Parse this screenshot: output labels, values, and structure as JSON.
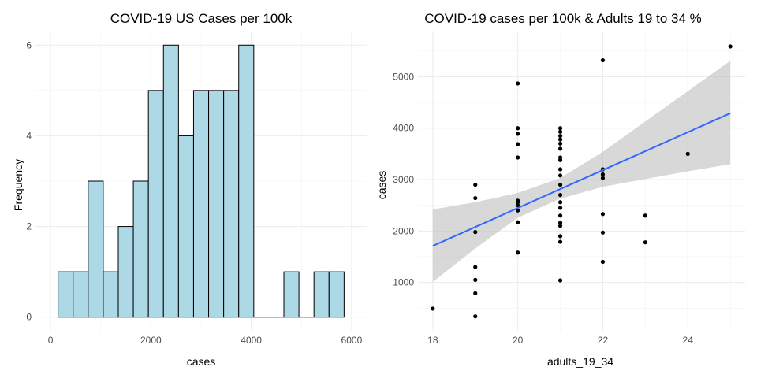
{
  "colors": {
    "bar_fill": "#ADD8E6",
    "bar_stroke": "#000000",
    "point": "#000000",
    "smooth_line": "#3366FF",
    "ribbon": "#BEBEBE"
  },
  "chart_data": [
    {
      "type": "bar",
      "subtype": "histogram",
      "title": "COVID-19 US Cases per 100k",
      "xlabel": "cases",
      "ylabel": "Frequency",
      "xlim": [
        0,
        6000
      ],
      "ylim": [
        0,
        6
      ],
      "xticks": [
        0,
        2000,
        4000,
        6000
      ],
      "yticks": [
        0,
        2,
        4,
        6
      ],
      "bin_width": 300,
      "bins": [
        {
          "x0": 150,
          "x1": 450,
          "count": 1
        },
        {
          "x0": 450,
          "x1": 750,
          "count": 1
        },
        {
          "x0": 750,
          "x1": 1050,
          "count": 3
        },
        {
          "x0": 1050,
          "x1": 1350,
          "count": 1
        },
        {
          "x0": 1350,
          "x1": 1650,
          "count": 2
        },
        {
          "x0": 1650,
          "x1": 1950,
          "count": 3
        },
        {
          "x0": 1950,
          "x1": 2250,
          "count": 5
        },
        {
          "x0": 2250,
          "x1": 2550,
          "count": 6
        },
        {
          "x0": 2550,
          "x1": 2850,
          "count": 4
        },
        {
          "x0": 2850,
          "x1": 3150,
          "count": 5
        },
        {
          "x0": 3150,
          "x1": 3450,
          "count": 5
        },
        {
          "x0": 3450,
          "x1": 3750,
          "count": 5
        },
        {
          "x0": 3750,
          "x1": 4050,
          "count": 6
        },
        {
          "x0": 4050,
          "x1": 4350,
          "count": 0
        },
        {
          "x0": 4350,
          "x1": 4650,
          "count": 0
        },
        {
          "x0": 4650,
          "x1": 4950,
          "count": 1
        },
        {
          "x0": 4950,
          "x1": 5250,
          "count": 0
        },
        {
          "x0": 5250,
          "x1": 5550,
          "count": 1
        },
        {
          "x0": 5550,
          "x1": 5850,
          "count": 1
        }
      ],
      "grid": true
    },
    {
      "type": "scatter",
      "title": "COVID-19 cases per 100k & Adults 19 to 34 %",
      "xlabel": "adults_19_34",
      "ylabel": "cases",
      "xlim": [
        17.65,
        25.35
      ],
      "ylim": [
        60,
        5880
      ],
      "xticks": [
        18,
        20,
        22,
        24
      ],
      "yticks": [
        1000,
        2000,
        3000,
        4000,
        5000
      ],
      "grid": true,
      "points": [
        [
          18,
          490
        ],
        [
          19,
          340
        ],
        [
          19,
          790
        ],
        [
          19,
          1050
        ],
        [
          19,
          1300
        ],
        [
          19,
          1980
        ],
        [
          19,
          2640
        ],
        [
          19,
          2900
        ],
        [
          20,
          1580
        ],
        [
          20,
          2170
        ],
        [
          20,
          2400
        ],
        [
          20,
          2500
        ],
        [
          20,
          2560
        ],
        [
          20,
          2590
        ],
        [
          20,
          3430
        ],
        [
          20,
          3690
        ],
        [
          20,
          3890
        ],
        [
          20,
          4000
        ],
        [
          20,
          4870
        ],
        [
          21,
          1040
        ],
        [
          21,
          1790
        ],
        [
          21,
          1900
        ],
        [
          21,
          2100
        ],
        [
          21,
          2160
        ],
        [
          21,
          2300
        ],
        [
          21,
          2450
        ],
        [
          21,
          2560
        ],
        [
          21,
          2700
        ],
        [
          21,
          2900
        ],
        [
          21,
          3080
        ],
        [
          21,
          3200
        ],
        [
          21,
          3380
        ],
        [
          21,
          3430
        ],
        [
          21,
          3600
        ],
        [
          21,
          3700
        ],
        [
          21,
          3780
        ],
        [
          21,
          3850
        ],
        [
          21,
          3930
        ],
        [
          21,
          4000
        ],
        [
          22,
          1400
        ],
        [
          22,
          1970
        ],
        [
          22,
          2330
        ],
        [
          22,
          3030
        ],
        [
          22,
          3100
        ],
        [
          22,
          3200
        ],
        [
          22,
          5320
        ],
        [
          23,
          1780
        ],
        [
          23,
          2300
        ],
        [
          24,
          3500
        ],
        [
          25,
          5590
        ]
      ],
      "trend": {
        "method": "linear",
        "x": [
          18,
          25
        ],
        "y": [
          1710,
          4290
        ],
        "ci_band": [
          {
            "x": 18,
            "lower": 1010,
            "upper": 2420
          },
          {
            "x": 19,
            "lower": 1660,
            "upper": 2560
          },
          {
            "x": 20,
            "lower": 2260,
            "upper": 2740
          },
          {
            "x": 21,
            "lower": 2630,
            "upper": 3030
          },
          {
            "x": 22,
            "lower": 2860,
            "upper": 3540
          },
          {
            "x": 23,
            "lower": 3010,
            "upper": 4130
          },
          {
            "x": 24,
            "lower": 3160,
            "upper": 4720
          },
          {
            "x": 25,
            "lower": 3300,
            "upper": 5310
          }
        ]
      }
    }
  ]
}
